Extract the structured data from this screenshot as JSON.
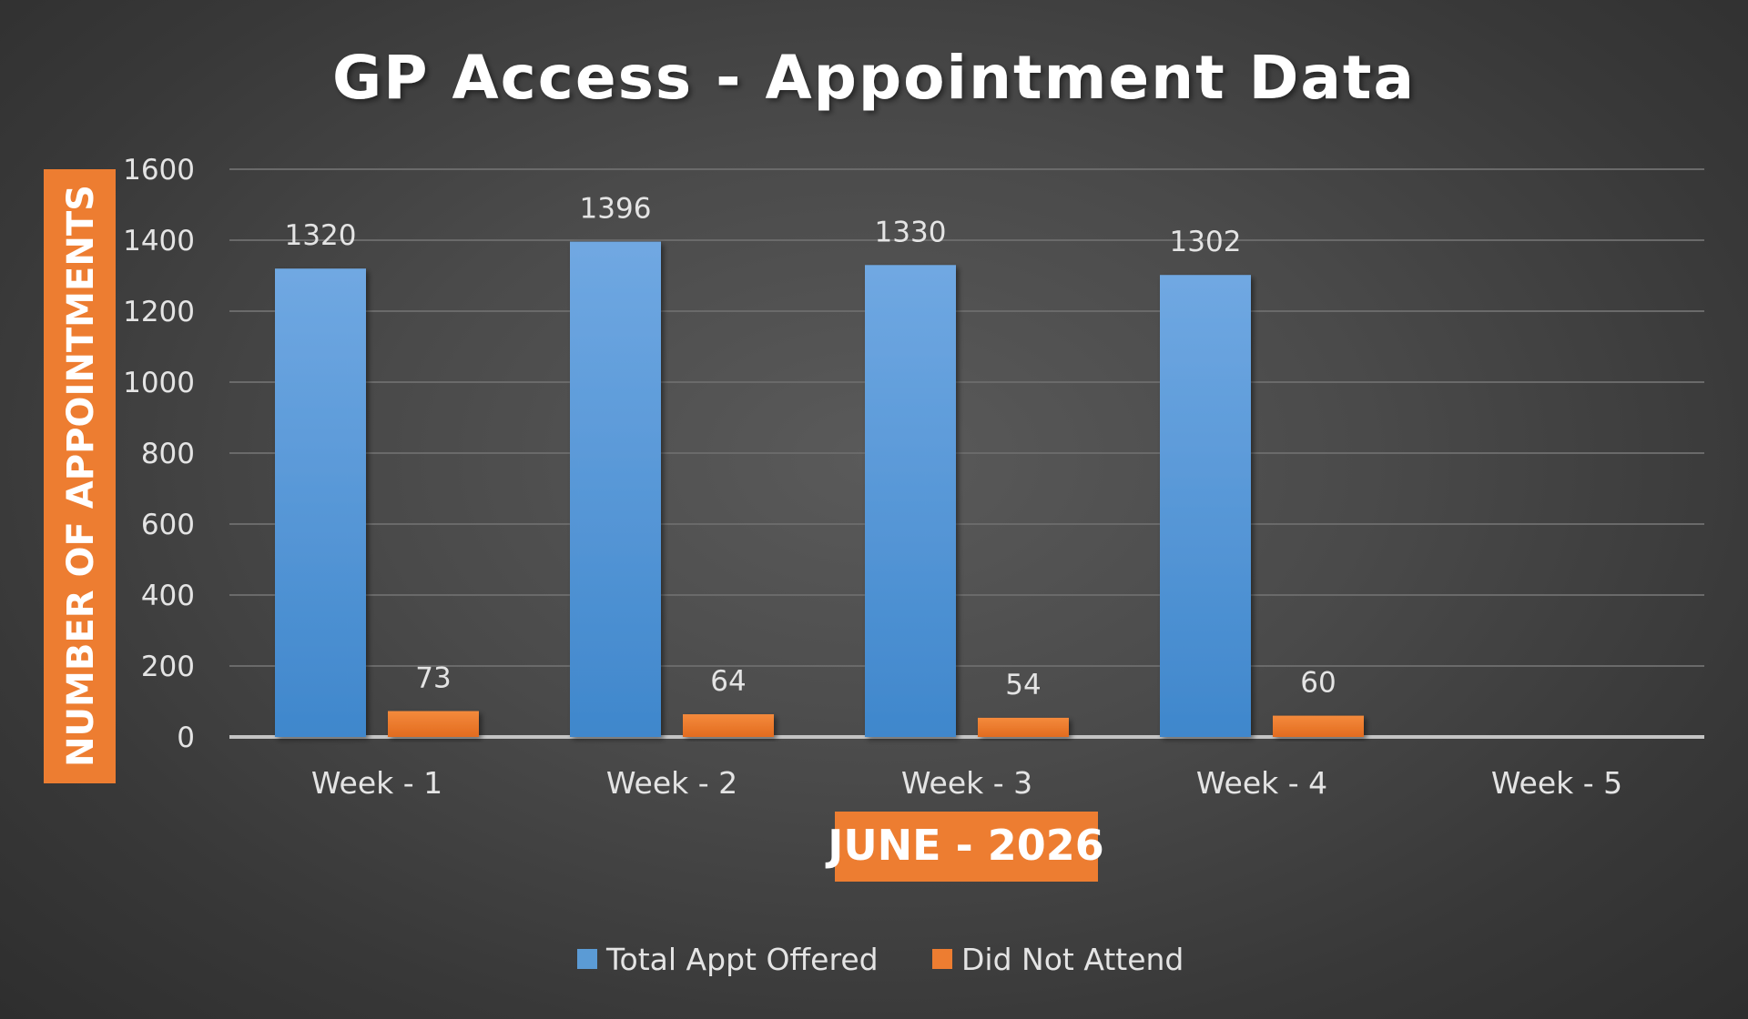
{
  "chart_data": {
    "type": "bar",
    "title": "GP Access - Appointment Data",
    "xlabel": "JUNE - 2026",
    "ylabel": "NUMBER OF APPOINTMENTS",
    "categories": [
      "Week - 1",
      "Week - 2",
      "Week - 3",
      "Week - 4",
      "Week - 5"
    ],
    "series": [
      {
        "name": "Total Appt Offered",
        "color": "#5b9bd5",
        "values": [
          1320,
          1396,
          1330,
          1302,
          null
        ],
        "labels": [
          "1320",
          "1396",
          "1330",
          "1302",
          ""
        ]
      },
      {
        "name": "Did Not Attend",
        "color": "#ed7d31",
        "values": [
          73,
          64,
          54,
          60,
          null
        ],
        "labels": [
          "73",
          "64",
          "54",
          "60",
          ""
        ]
      }
    ],
    "ylim": [
      0,
      1600
    ],
    "yticks": [
      "0",
      "200",
      "400",
      "600",
      "800",
      "1000",
      "1200",
      "1400",
      "1600"
    ],
    "grid": true,
    "legend_position": "bottom",
    "accent_color": "#ed7d31"
  }
}
